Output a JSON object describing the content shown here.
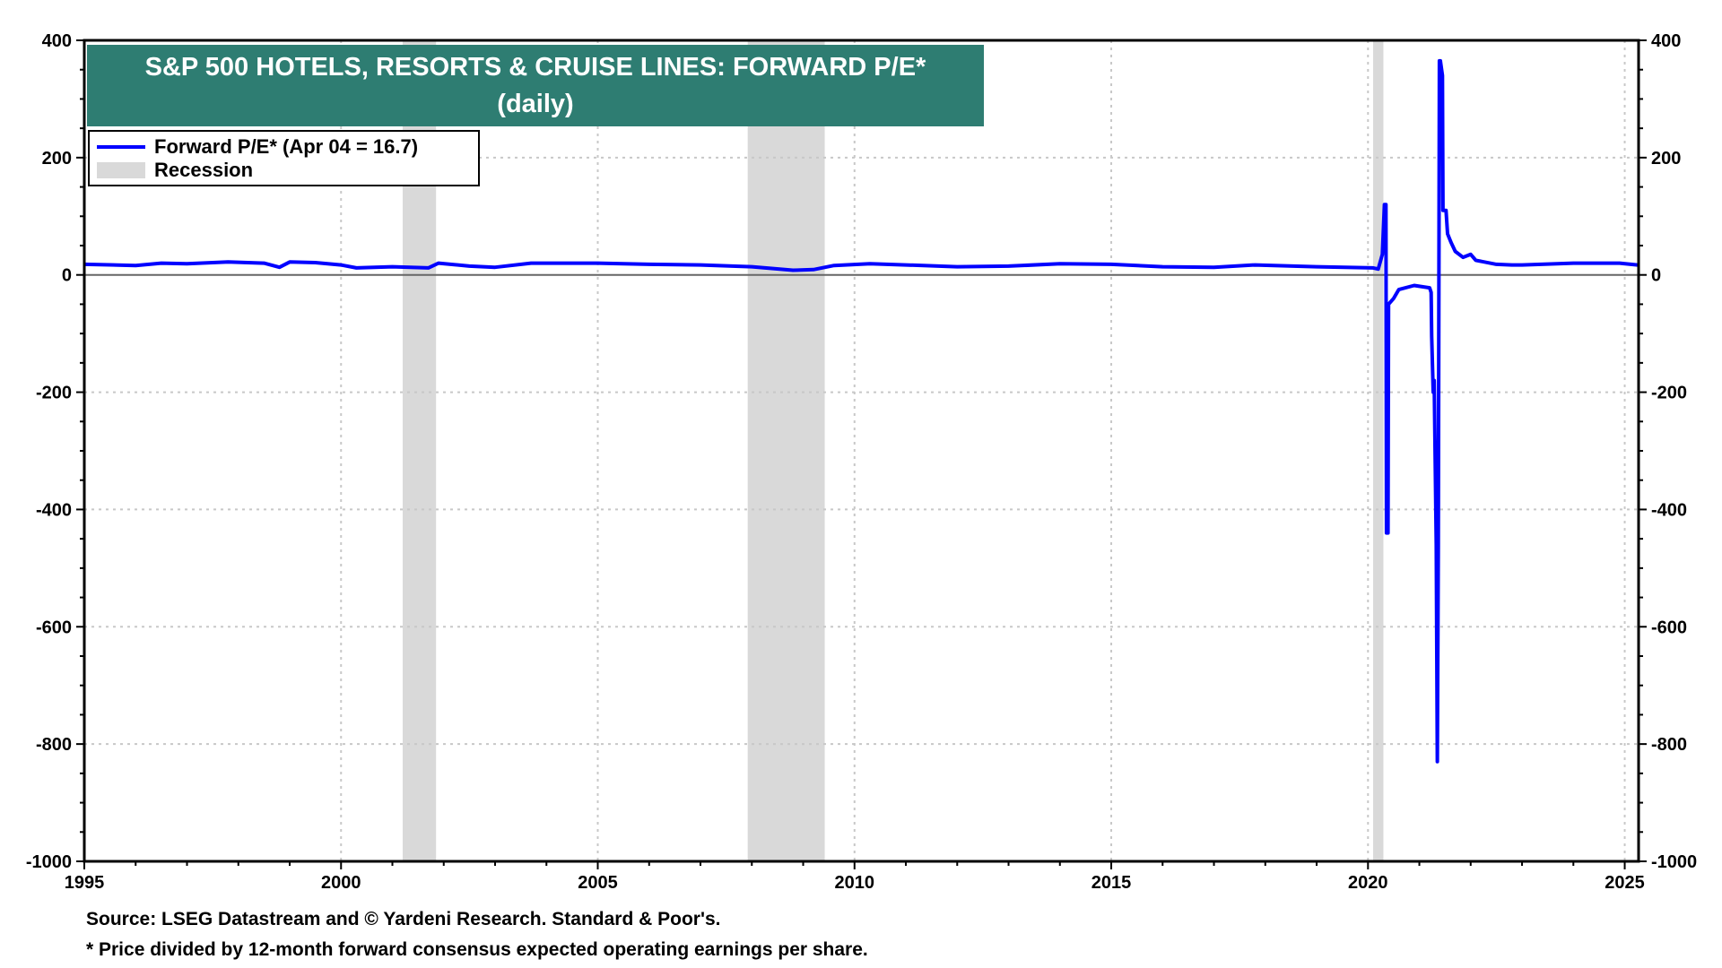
{
  "chart_data": {
    "type": "line",
    "title": "S&P 500 HOTELS, RESORTS & CRUISE LINES: FORWARD P/E*",
    "subtitle": "(daily)",
    "xlim": [
      1995,
      2025.27
    ],
    "ylim": [
      -1000,
      400
    ],
    "x_ticks": [
      "1995",
      "2000",
      "2005",
      "2010",
      "2015",
      "2020",
      "2025"
    ],
    "y_ticks": [
      "400",
      "200",
      "0",
      "-200",
      "-400",
      "-600",
      "-800",
      "-1000"
    ],
    "grid": true,
    "legend_placement": "top-left",
    "legend": {
      "series": "Forward P/E* (Apr 04 = 16.7)",
      "recession": "Recession"
    },
    "colors": {
      "series": "#0000ff",
      "recession": "#d9d9d9",
      "title_bg": "#2e7d72"
    },
    "recessions": [
      [
        2001.2,
        2001.85
      ],
      [
        2007.92,
        2009.42
      ],
      [
        2020.1,
        2020.3
      ]
    ],
    "series": [
      {
        "name": "Forward P/E* (Apr 04 = 16.7)",
        "x": [
          1995,
          1996,
          1996.5,
          1997,
          1997.8,
          1998.5,
          1998.8,
          1999,
          1999.5,
          2000,
          2000.3,
          2001,
          2001.7,
          2001.9,
          2002.5,
          2003,
          2003.7,
          2004.5,
          2005,
          2006,
          2007,
          2008,
          2008.8,
          2009.2,
          2009.6,
          2010.3,
          2011,
          2012,
          2013,
          2014,
          2015,
          2016,
          2017,
          2017.8,
          2019,
          2020.1,
          2020.2,
          2020.28,
          2020.32,
          2020.35,
          2020.36,
          2020.39,
          2020.4,
          2020.5,
          2020.6,
          2020.9,
          2021.2,
          2021.23,
          2021.24,
          2021.27,
          2021.29,
          2021.33,
          2021.35,
          2021.37,
          2021.39,
          2021.41,
          2021.45,
          2021.46,
          2021.52,
          2021.55,
          2021.62,
          2021.7,
          2021.85,
          2022,
          2022.1,
          2022.5,
          2022.8,
          2023,
          2024,
          2024.9,
          2025.27
        ],
        "y": [
          18,
          16,
          20,
          19,
          22,
          20,
          13,
          22,
          21,
          17,
          12,
          14,
          12,
          20,
          15,
          13,
          20,
          20,
          20,
          18,
          17,
          14,
          8,
          9,
          16,
          19,
          17,
          14,
          15,
          19,
          18,
          14,
          13,
          17,
          14,
          12,
          10,
          35,
          120,
          120,
          -440,
          -440,
          -50,
          -40,
          -25,
          -18,
          -22,
          -30,
          -105,
          -200,
          -180,
          -460,
          -830,
          -460,
          365,
          365,
          340,
          110,
          110,
          70,
          55,
          40,
          30,
          35,
          25,
          18,
          17,
          17,
          20,
          20,
          16.7
        ]
      }
    ]
  },
  "notes": {
    "source": "Source: LSEG Datastream and © Yardeni Research. Standard & Poor's.",
    "footnote": "* Price divided by 12-month forward consensus expected operating earnings per share."
  }
}
